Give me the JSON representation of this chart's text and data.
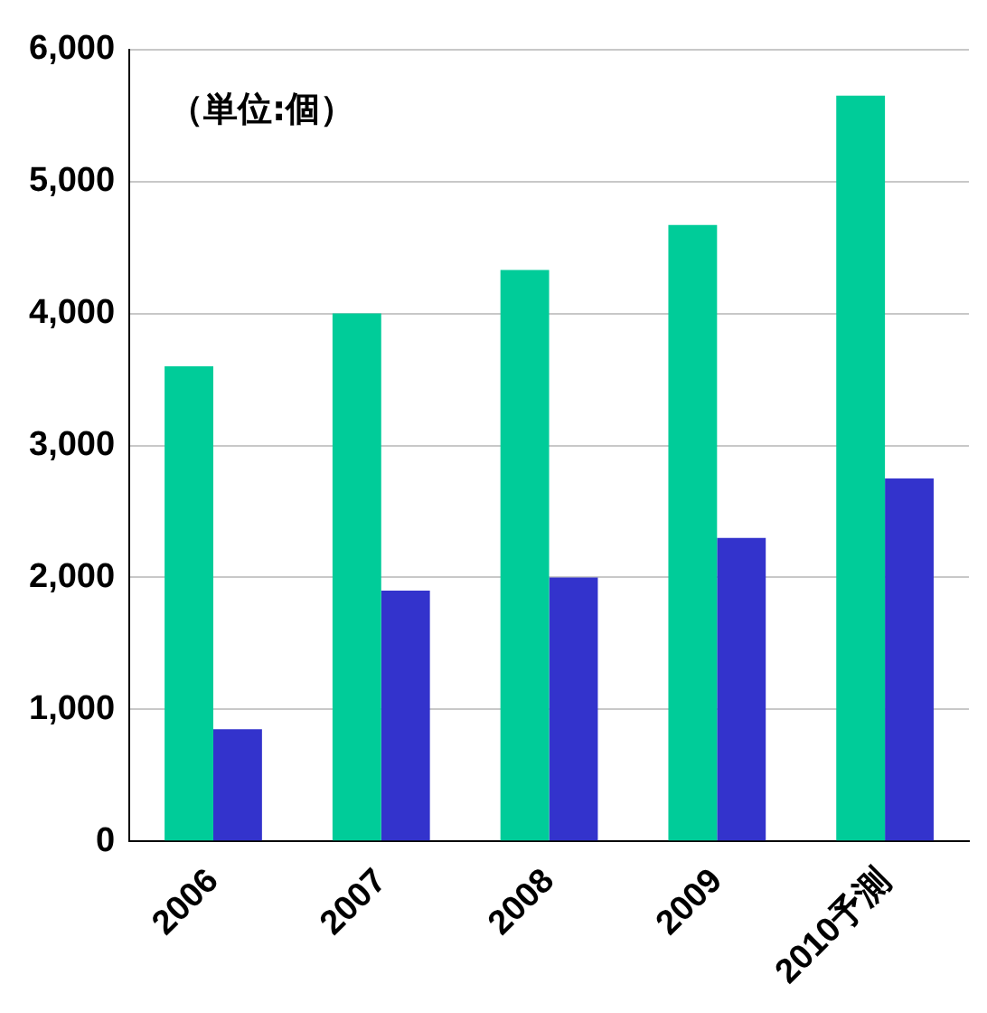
{
  "chart_data": {
    "type": "bar",
    "categories": [
      "2006",
      "2007",
      "2008",
      "2009",
      "2010予測"
    ],
    "series": [
      {
        "color": "#00cc99",
        "values": [
          3600,
          4000,
          4330,
          4670,
          5650
        ]
      },
      {
        "color": "#3333cc",
        "values": [
          850,
          1900,
          2000,
          2300,
          2750
        ]
      }
    ],
    "ylim": [
      0,
      6000
    ],
    "yticks": [
      {
        "value": 0,
        "label": "0"
      },
      {
        "value": 1000,
        "label": "1,000"
      },
      {
        "value": 2000,
        "label": "2,000"
      },
      {
        "value": 3000,
        "label": "3,000"
      },
      {
        "value": 4000,
        "label": "4,000"
      },
      {
        "value": 5000,
        "label": "5,000"
      },
      {
        "value": 6000,
        "label": "6,000"
      }
    ],
    "grid": "y",
    "legend": false,
    "annotations": [
      "（単位:個）"
    ]
  }
}
